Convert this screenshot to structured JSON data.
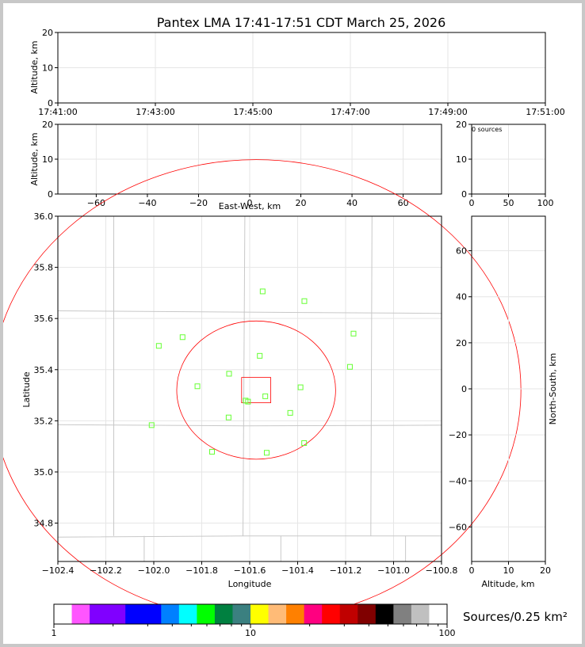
{
  "title": "Pantex LMA 17:41-17:51 CDT March 25, 2026",
  "colorbar_label": "Sources/0.25 km²",
  "chart_data": [
    {
      "id": "time_altitude",
      "type": "scatter",
      "xlabel": "",
      "ylabel": "Altitude, km",
      "x_ticks": [
        "17:41:00",
        "17:43:00",
        "17:45:00",
        "17:47:00",
        "17:49:00",
        "17:51:00"
      ],
      "y_ticks": [
        0,
        10,
        20
      ],
      "ylim": [
        0,
        20
      ],
      "grid": true,
      "points": []
    },
    {
      "id": "ew_altitude",
      "type": "scatter",
      "xlabel": "East-West, km",
      "ylabel": "Altitude, km",
      "xlim": [
        -75,
        75
      ],
      "ylim": [
        0,
        20
      ],
      "x_ticks": [
        -60,
        -40,
        -20,
        0,
        20,
        40,
        60
      ],
      "y_ticks": [
        0,
        10,
        20
      ],
      "grid": true,
      "points": []
    },
    {
      "id": "altitude_histogram",
      "type": "bar",
      "annotation": "0 sources",
      "xlim": [
        0,
        100
      ],
      "ylim": [
        0,
        20
      ],
      "x_ticks": [
        0,
        50,
        100
      ],
      "y_ticks": [
        0,
        10,
        20
      ],
      "grid": true,
      "values": []
    },
    {
      "id": "plan_view",
      "type": "scatter",
      "xlabel": "Longitude",
      "ylabel": "Latitude",
      "xlim": [
        -102.4,
        -100.8
      ],
      "ylim": [
        34.65,
        36.0
      ],
      "x_ticks": [
        "−102.4",
        "−102.2",
        "−102.0",
        "−101.8",
        "−101.6",
        "−101.4",
        "−101.2",
        "−101.0",
        "−100.8"
      ],
      "y_ticks": [
        "34.8",
        "35.0",
        "35.2",
        "35.4",
        "35.6",
        "35.8",
        "36.0"
      ],
      "center": [
        -101.573,
        35.32
      ],
      "range_rings_km": [
        30,
        100
      ],
      "ring_color": "#ff0000",
      "station_color": "#66ff33",
      "stations": [
        {
          "lon": -101.546,
          "lat": 35.706
        },
        {
          "lon": -101.372,
          "lat": 35.668
        },
        {
          "lon": -101.167,
          "lat": 35.541
        },
        {
          "lon": -101.88,
          "lat": 35.527
        },
        {
          "lon": -101.979,
          "lat": 35.493
        },
        {
          "lon": -101.558,
          "lat": 35.454
        },
        {
          "lon": -101.686,
          "lat": 35.384
        },
        {
          "lon": -101.182,
          "lat": 35.411
        },
        {
          "lon": -101.818,
          "lat": 35.335
        },
        {
          "lon": -101.388,
          "lat": 35.331
        },
        {
          "lon": -101.535,
          "lat": 35.296
        },
        {
          "lon": -101.617,
          "lat": 35.279
        },
        {
          "lon": -101.607,
          "lat": 35.275
        },
        {
          "lon": -101.431,
          "lat": 35.231
        },
        {
          "lon": -101.688,
          "lat": 35.213
        },
        {
          "lon": -102.009,
          "lat": 35.183
        },
        {
          "lon": -101.757,
          "lat": 35.079
        },
        {
          "lon": -101.529,
          "lat": 35.075
        },
        {
          "lon": -101.373,
          "lat": 35.113
        }
      ],
      "grid": true
    },
    {
      "id": "ns_altitude",
      "type": "scatter",
      "xlabel": "Altitude, km",
      "ylabel": "North-South, km",
      "xlim": [
        0,
        20
      ],
      "ylim": [
        -75,
        75
      ],
      "x_ticks": [
        0,
        10,
        20
      ],
      "y_ticks": [
        "−60",
        "−40",
        "−20",
        "0",
        "20",
        "40",
        "60"
      ],
      "grid": true,
      "points": []
    }
  ],
  "colorbar": {
    "type": "colorbar",
    "scale": "log",
    "range": [
      1,
      100
    ],
    "tick_labels": [
      "1",
      "10",
      "100"
    ],
    "colors": [
      "#ffffff",
      "#ff55ff",
      "#8000ff",
      "#8000ff",
      "#0000ff",
      "#0000ff",
      "#0080ff",
      "#00ffff",
      "#00ff00",
      "#008040",
      "#3b8080",
      "#ffff00",
      "#ffbb77",
      "#ff8000",
      "#ff0080",
      "#ff0000",
      "#c00000",
      "#800000",
      "#000000",
      "#808080",
      "#c0c0c0",
      "#ffffff"
    ]
  }
}
